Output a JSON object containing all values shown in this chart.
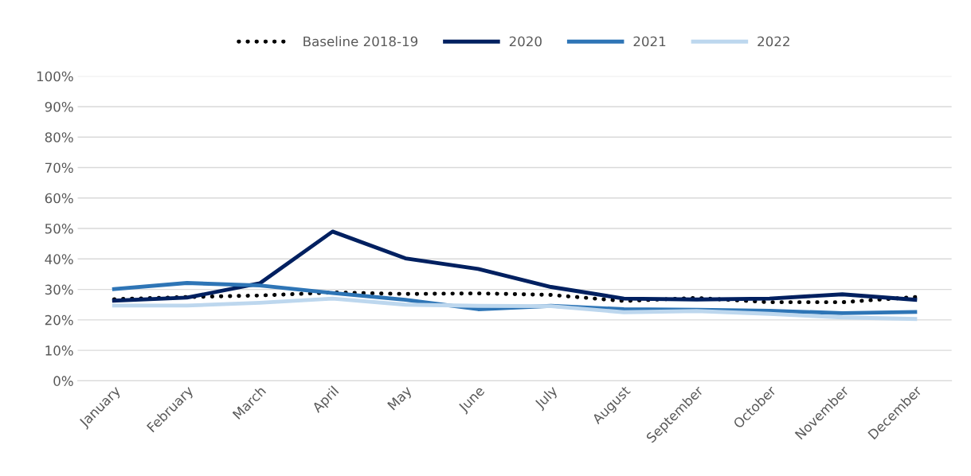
{
  "chart_data": {
    "type": "line",
    "categories": [
      "January",
      "February",
      "March",
      "April",
      "May",
      "June",
      "July",
      "August",
      "September",
      "October",
      "November",
      "December"
    ],
    "series": [
      {
        "name": "Baseline 2018-19",
        "color": "#000000",
        "line_style": "dotted",
        "values": [
          26.8,
          27.5,
          28,
          29,
          28.5,
          28.7,
          28.2,
          26.2,
          27.2,
          25.8,
          25.8,
          27.5
        ]
      },
      {
        "name": "2020",
        "color": "#002060",
        "line_style": "solid",
        "values": [
          26.3,
          27.3,
          32,
          49,
          40.2,
          36.7,
          30.8,
          27,
          26.7,
          27,
          28.4,
          26.6
        ]
      },
      {
        "name": "2021",
        "color": "#2e75b6",
        "line_style": "solid",
        "values": [
          30.1,
          32.1,
          31.3,
          28.8,
          26.6,
          23.5,
          24.6,
          23.5,
          23.3,
          23,
          22.2,
          22.6
        ]
      },
      {
        "name": "2022",
        "color": "#bdd7ee",
        "line_style": "solid",
        "values": [
          24.7,
          24.7,
          25.6,
          27,
          25,
          24.6,
          24.5,
          22.5,
          22.9,
          22,
          20.8,
          20.3
        ]
      }
    ],
    "ylim": [
      0,
      100
    ],
    "yticks": [
      {
        "value": 0,
        "label": "0%"
      },
      {
        "value": 10,
        "label": "10%"
      },
      {
        "value": 20,
        "label": "20%"
      },
      {
        "value": 30,
        "label": "30%"
      },
      {
        "value": 40,
        "label": "40%"
      },
      {
        "value": 50,
        "label": "50%"
      },
      {
        "value": 60,
        "label": "60%"
      },
      {
        "value": 70,
        "label": "70%"
      },
      {
        "value": 80,
        "label": "80%"
      },
      {
        "value": 90,
        "label": "90%"
      },
      {
        "value": 100,
        "label": "100%"
      }
    ],
    "grid": "y",
    "legend": "top",
    "marker": "none"
  }
}
